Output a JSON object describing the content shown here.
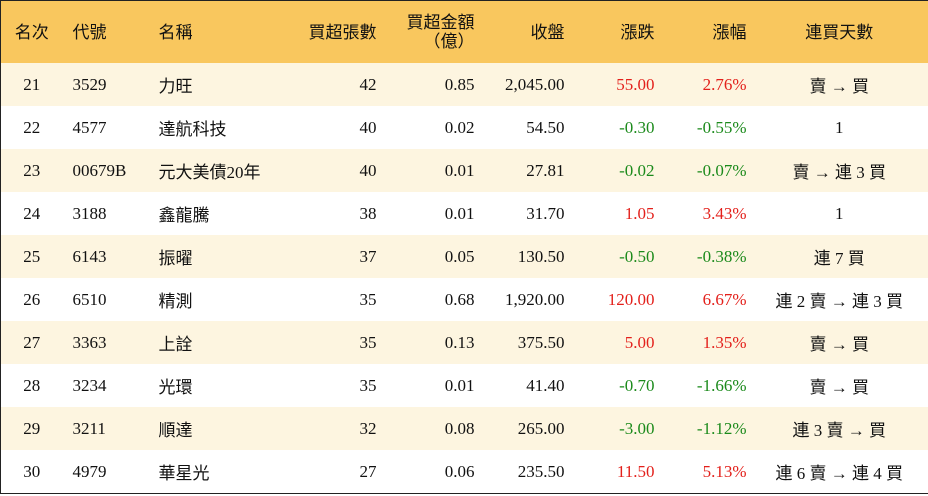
{
  "header": {
    "columns": [
      "名次",
      "代號",
      "名稱",
      "買超張數",
      "買超金額\n（億）",
      "收盤",
      "漲跌",
      "漲幅",
      "連買天數"
    ]
  },
  "table": {
    "rows": [
      [
        "21",
        "3529",
        "力旺",
        "42",
        "0.85",
        "2,045.00",
        "55.00",
        "2.76%",
        "賣 → 買"
      ],
      [
        "22",
        "4577",
        "達航科技",
        "40",
        "0.02",
        "54.50",
        "-0.30",
        "-0.55%",
        "1"
      ],
      [
        "23",
        "00679B",
        "元大美債20年",
        "40",
        "0.01",
        "27.81",
        "-0.02",
        "-0.07%",
        "賣 → 連 3 買"
      ],
      [
        "24",
        "3188",
        "鑫龍騰",
        "38",
        "0.01",
        "31.70",
        "1.05",
        "3.43%",
        "1"
      ],
      [
        "25",
        "6143",
        "振曜",
        "37",
        "0.05",
        "130.50",
        "-0.50",
        "-0.38%",
        "連 7 買"
      ],
      [
        "26",
        "6510",
        "精測",
        "35",
        "0.68",
        "1,920.00",
        "120.00",
        "6.67%",
        "連 2 賣 → 連 3 買"
      ],
      [
        "27",
        "3363",
        "上詮",
        "35",
        "0.13",
        "375.50",
        "5.00",
        "1.35%",
        "賣 → 買"
      ],
      [
        "28",
        "3234",
        "光環",
        "35",
        "0.01",
        "41.40",
        "-0.70",
        "-1.66%",
        "賣 → 買"
      ],
      [
        "29",
        "3211",
        "順達",
        "32",
        "0.08",
        "265.00",
        "-3.00",
        "-1.12%",
        "連 3 賣 → 買"
      ],
      [
        "30",
        "4979",
        "華星光",
        "27",
        "0.06",
        "235.50",
        "11.50",
        "5.13%",
        "連 6 賣 → 連 4 買"
      ]
    ]
  }
}
